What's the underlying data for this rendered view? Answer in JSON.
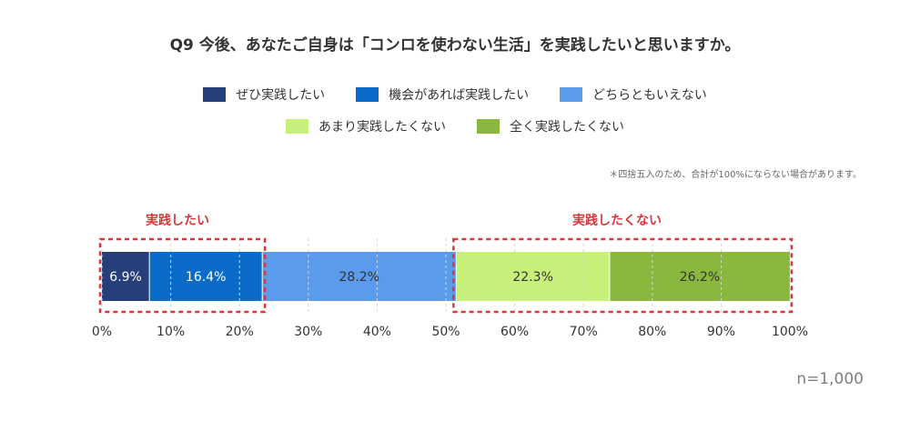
{
  "title": "Q9 今後、あなたご自身は「コンロを使わない生活」を実践したいと思いますか。",
  "note": "＊四捨五入のため、合計が100%にならない場合があります。",
  "groups": {
    "want": {
      "label": "実践したい",
      "color": "#d9383a"
    },
    "not_want": {
      "label": "実践したくない",
      "color": "#d9383a"
    }
  },
  "n_label": "n=1,000",
  "chart_data": {
    "type": "bar",
    "orientation": "horizontal",
    "stacked": true,
    "xlim": [
      0,
      100
    ],
    "ticks": [
      "0%",
      "10%",
      "20%",
      "30%",
      "40%",
      "50%",
      "60%",
      "70%",
      "80%",
      "90%",
      "100%"
    ],
    "legend_position": "top",
    "series": [
      {
        "name": "ぜひ実践したい",
        "value": 6.9,
        "label": "6.9%",
        "color": "#243f7a",
        "text_color": "#ffffff"
      },
      {
        "name": "機会があれば実践したい",
        "value": 16.4,
        "label": "16.4%",
        "color": "#0a6cc8",
        "text_color": "#ffffff"
      },
      {
        "name": "どちらともいえない",
        "value": 28.2,
        "label": "28.2%",
        "color": "#5a9bec",
        "text_color": "#333333"
      },
      {
        "name": "あまり実践したくない",
        "value": 22.3,
        "label": "22.3%",
        "color": "#c6f07a",
        "text_color": "#333333"
      },
      {
        "name": "全く実践したくない",
        "value": 26.2,
        "label": "26.2%",
        "color": "#8ab83e",
        "text_color": "#333333"
      }
    ]
  }
}
